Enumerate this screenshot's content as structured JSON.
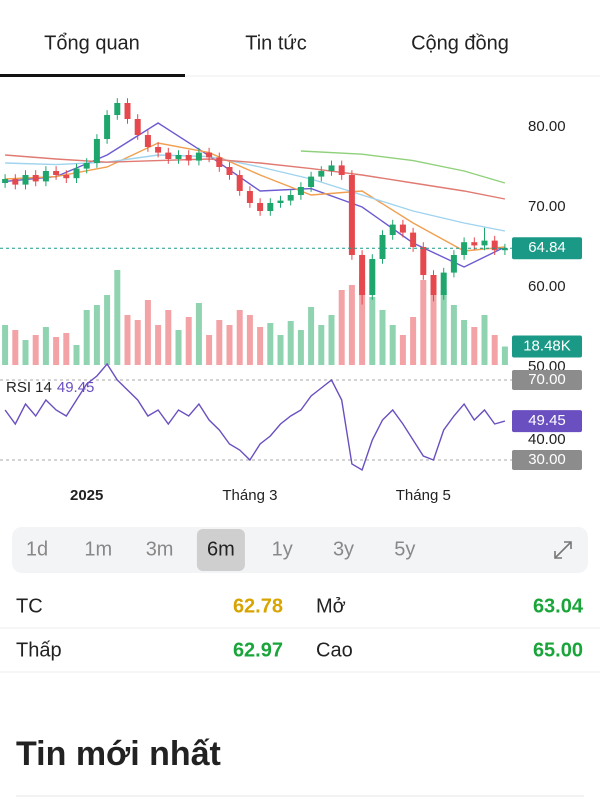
{
  "tabs": [
    {
      "label": "Tổng quan",
      "active": true
    },
    {
      "label": "Tin tức",
      "active": false
    },
    {
      "label": "Cộng đồng",
      "active": false
    }
  ],
  "chart": {
    "type": "candlestick",
    "categories": [
      null,
      null,
      null,
      null,
      null,
      null,
      null,
      null,
      "2025",
      null,
      null,
      null,
      null,
      null,
      null,
      null,
      null,
      null,
      null,
      null,
      null,
      null,
      null,
      null,
      "Tháng 3",
      null,
      null,
      null,
      null,
      null,
      null,
      null,
      null,
      null,
      null,
      null,
      null,
      null,
      null,
      null,
      null,
      "Tháng 5",
      null,
      null,
      null,
      null,
      null,
      null,
      null,
      null
    ],
    "open": [
      73.0,
      73.5,
      72.8,
      74.0,
      73.2,
      74.5,
      74.0,
      73.6,
      74.8,
      75.5,
      78.5,
      81.5,
      83.0,
      81.0,
      79.0,
      77.5,
      76.8,
      76.0,
      76.5,
      75.8,
      76.8,
      76.2,
      75.0,
      74.0,
      72.0,
      70.5,
      69.5,
      70.5,
      70.8,
      71.5,
      72.5,
      73.8,
      74.5,
      75.2,
      74.0,
      64.0,
      59.0,
      63.5,
      66.5,
      67.8,
      66.8,
      65.0,
      61.5,
      59.0,
      61.8,
      64.0,
      65.6,
      65.2,
      65.8,
      64.6
    ],
    "high": [
      74.1,
      74.1,
      74.6,
      74.6,
      75.1,
      75.1,
      74.6,
      75.4,
      76.1,
      79.1,
      82.1,
      83.6,
      83.6,
      81.6,
      79.6,
      78.1,
      77.4,
      77.1,
      77.1,
      77.4,
      77.4,
      76.8,
      75.6,
      74.6,
      72.6,
      71.1,
      71.1,
      71.4,
      72.1,
      73.1,
      74.4,
      75.1,
      75.8,
      75.8,
      74.6,
      64.6,
      64.1,
      67.1,
      68.4,
      68.4,
      67.4,
      65.6,
      62.1,
      62.4,
      64.6,
      66.2,
      66.2,
      67.4,
      66.4,
      65.4
    ],
    "low": [
      72.4,
      72.2,
      72.2,
      72.6,
      72.6,
      73.4,
      73.0,
      73.0,
      74.2,
      74.9,
      77.9,
      80.9,
      80.4,
      78.4,
      76.9,
      76.2,
      75.4,
      75.4,
      75.2,
      75.2,
      75.6,
      74.4,
      73.4,
      71.4,
      69.9,
      68.9,
      68.9,
      69.9,
      70.2,
      70.9,
      71.9,
      73.2,
      73.9,
      73.4,
      63.4,
      57.8,
      58.4,
      62.9,
      65.9,
      66.2,
      64.4,
      60.9,
      58.2,
      58.4,
      61.2,
      63.4,
      64.6,
      64.6,
      64.0,
      64.0
    ],
    "close": [
      73.5,
      72.8,
      74.0,
      73.2,
      74.5,
      74.0,
      73.6,
      74.8,
      75.5,
      78.5,
      81.5,
      83.0,
      81.0,
      79.0,
      77.5,
      76.8,
      76.0,
      76.5,
      75.8,
      76.8,
      76.2,
      75.0,
      74.0,
      72.0,
      70.5,
      69.5,
      70.5,
      70.8,
      71.5,
      72.5,
      73.8,
      74.5,
      75.2,
      74.0,
      64.0,
      59.0,
      63.5,
      66.5,
      67.8,
      66.8,
      65.0,
      61.5,
      59.0,
      61.8,
      64.0,
      65.6,
      65.2,
      65.8,
      64.6,
      64.84
    ],
    "up_color": "#1fa66d",
    "down_color": "#e5484d",
    "volume_up_color": "#8fd3b0",
    "volume_down_color": "#f3a3a6",
    "ylim": [
      50,
      85.625
    ],
    "yticks": [
      {
        "value": 80,
        "label": "80.00"
      },
      {
        "value": 70,
        "label": "70.00"
      },
      {
        "value": 60,
        "label": "60.00"
      },
      {
        "value": 50,
        "label": "50.00"
      }
    ],
    "last_price": 64.84,
    "last_price_color": "#1a9a86",
    "volume": {
      "values": [
        40,
        35,
        25,
        30,
        38,
        28,
        32,
        20,
        55,
        60,
        70,
        95,
        50,
        45,
        65,
        40,
        55,
        35,
        48,
        62,
        30,
        45,
        40,
        55,
        50,
        38,
        42,
        30,
        44,
        35,
        58,
        40,
        50,
        75,
        80,
        90,
        68,
        55,
        40,
        30,
        48,
        85,
        70,
        75,
        60,
        45,
        38,
        50,
        30,
        18.48
      ],
      "ylim": [
        0,
        100
      ],
      "last": {
        "value": 18.48,
        "label": "18.48K"
      }
    },
    "ma_lines": [
      {
        "color": "#6b5bd0",
        "x": [
          0,
          5,
          10,
          15,
          20,
          25,
          30,
          35,
          40,
          45,
          49
        ],
        "values": [
          73.2,
          73.8,
          76.5,
          80.5,
          76.4,
          72,
          72.3,
          70,
          65.5,
          62.5,
          65.0
        ]
      },
      {
        "color": "#f0a050",
        "x": [
          0,
          5,
          10,
          15,
          20,
          25,
          30,
          35,
          40,
          45,
          49
        ],
        "values": [
          73.5,
          73.8,
          75,
          78,
          76.8,
          74,
          71.5,
          72,
          68,
          64.5,
          65.0
        ]
      },
      {
        "color": "#9fd3ee",
        "x": [
          0,
          5,
          10,
          15,
          20,
          25,
          30,
          35,
          40,
          45,
          49
        ],
        "values": [
          75.5,
          75.3,
          75.6,
          76.5,
          76.3,
          75,
          73.5,
          71.5,
          69.5,
          68,
          67.0
        ]
      },
      {
        "color": "#e07a72",
        "x": [
          0,
          5,
          10,
          15,
          20,
          25,
          30,
          35,
          40,
          45,
          49
        ],
        "values": [
          76.5,
          76,
          75.6,
          75.8,
          76,
          75.5,
          74.8,
          74,
          73,
          72,
          71.0
        ]
      },
      {
        "color": "#8fd17a",
        "x": [
          29,
          35,
          40,
          45,
          49
        ],
        "values": [
          77,
          76.6,
          75.8,
          74.5,
          73.0
        ]
      }
    ],
    "rsi": {
      "label": "RSI 14",
      "color": "#6a4fc0",
      "last": 49.45,
      "ylim": [
        22.5,
        75
      ],
      "yticks": [
        {
          "value": 70,
          "label": "70.00"
        },
        {
          "value": 40,
          "label": "40.00"
        },
        {
          "value": 30,
          "label": "30.00"
        }
      ],
      "values": [
        55,
        48,
        58,
        52,
        60,
        55,
        52,
        60,
        68,
        72,
        78,
        70,
        65,
        60,
        52,
        55,
        48,
        55,
        52,
        58,
        50,
        45,
        38,
        35,
        30,
        38,
        42,
        48,
        52,
        55,
        62,
        66,
        70,
        60,
        28,
        25,
        40,
        50,
        55,
        48,
        40,
        32,
        30,
        45,
        52,
        58,
        50,
        55,
        48,
        49.45
      ]
    }
  },
  "periods": [
    {
      "label": "1d",
      "selected": false
    },
    {
      "label": "1m",
      "selected": false
    },
    {
      "label": "3m",
      "selected": false
    },
    {
      "label": "6m",
      "selected": true
    },
    {
      "label": "1y",
      "selected": false
    },
    {
      "label": "3y",
      "selected": false
    },
    {
      "label": "5y",
      "selected": false
    }
  ],
  "stats": [
    [
      {
        "label": "TC",
        "value": "62.78",
        "color": "#d9a400"
      },
      {
        "label": "Mở",
        "value": "63.04",
        "color": "#1aa53a"
      }
    ],
    [
      {
        "label": "Thấp",
        "value": "62.97",
        "color": "#1aa53a"
      },
      {
        "label": "Cao",
        "value": "65.00",
        "color": "#1aa53a"
      }
    ]
  ],
  "news_title": "Tin mới nhất"
}
